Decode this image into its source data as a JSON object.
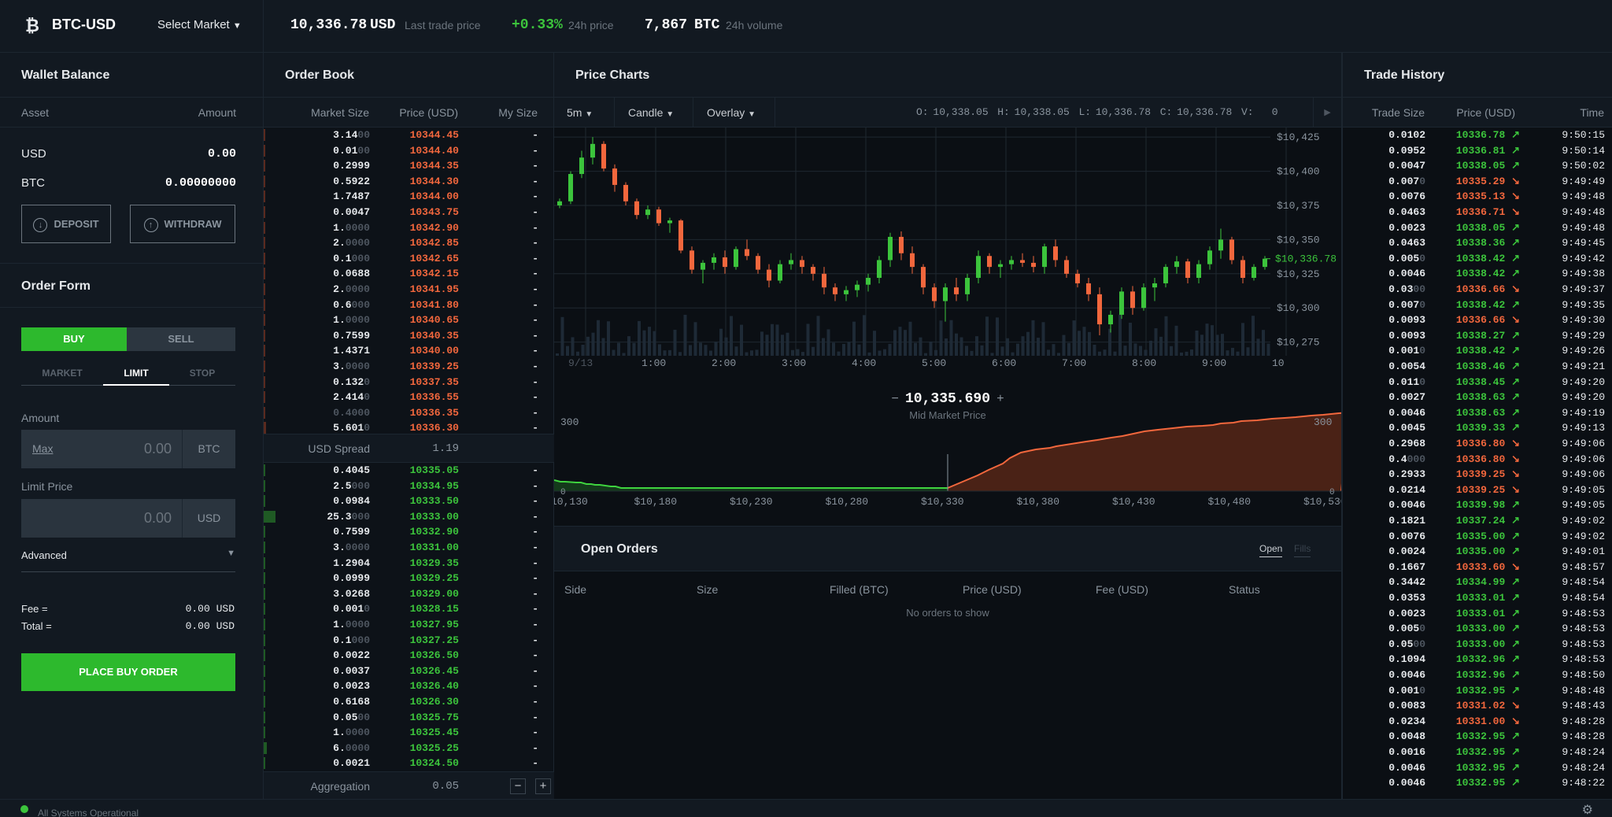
{
  "header": {
    "symbol": "BTC-USD",
    "market_select": "Select Market",
    "last_price": "10,336.78",
    "last_price_unit": "USD",
    "last_price_label": "Last trade price",
    "change": "+0.33%",
    "change_label": "24h price",
    "volume": "7,867",
    "volume_unit": "BTC",
    "volume_label": "24h volume"
  },
  "wallet": {
    "title": "Wallet Balance",
    "col_asset": "Asset",
    "col_amount": "Amount",
    "rows": [
      {
        "asset": "USD",
        "amount": "0.00"
      },
      {
        "asset": "BTC",
        "amount": "0.00000000"
      }
    ],
    "deposit": "DEPOSIT",
    "withdraw": "WITHDRAW"
  },
  "order_form": {
    "title": "Order Form",
    "buy": "BUY",
    "sell": "SELL",
    "tabs": [
      "MARKET",
      "LIMIT",
      "STOP"
    ],
    "active_tab": "LIMIT",
    "amount_label": "Amount",
    "max": "Max",
    "amount_value": "0.00",
    "amount_unit": "BTC",
    "limit_label": "Limit Price",
    "limit_value": "0.00",
    "limit_unit": "USD",
    "advanced": "Advanced",
    "fee_label": "Fee =",
    "fee_value": "0.00",
    "fee_unit": "USD",
    "total_label": "Total =",
    "total_value": "0.00",
    "total_unit": "USD",
    "place": "PLACE BUY ORDER"
  },
  "order_book": {
    "title": "Order Book",
    "col_size": "Market Size",
    "col_price": "Price (USD)",
    "col_my": "My Size",
    "asks": [
      [
        "3.14",
        "00",
        "10344.45"
      ],
      [
        "0.01",
        "00",
        "10344.40"
      ],
      [
        "0.2999",
        "",
        "10344.35"
      ],
      [
        "0.5922",
        "",
        "10344.30"
      ],
      [
        "1.7487",
        "",
        "10344.00"
      ],
      [
        "0.0047",
        "",
        "10343.75"
      ],
      [
        "1.",
        "0000",
        "10342.90"
      ],
      [
        "2.",
        "0000",
        "10342.85"
      ],
      [
        "0.1",
        "000",
        "10342.65"
      ],
      [
        "0.0688",
        "",
        "10342.15"
      ],
      [
        "2.",
        "0000",
        "10341.95"
      ],
      [
        "0.6",
        "000",
        "10341.80"
      ],
      [
        "1.",
        "0000",
        "10340.65"
      ],
      [
        "0.7599",
        "",
        "10340.35"
      ],
      [
        "1.4371",
        "",
        "10340.00"
      ],
      [
        "3.",
        "0000",
        "10339.25"
      ],
      [
        "0.132",
        "0",
        "10337.35"
      ],
      [
        "2.414",
        "0",
        "10336.55"
      ],
      [
        "",
        "0.4000",
        "10336.35"
      ],
      [
        "5.601",
        "0",
        "10336.30"
      ]
    ],
    "spread_label": "USD Spread",
    "spread_value": "1.19",
    "bids": [
      [
        "0.4045",
        "",
        "10335.05"
      ],
      [
        "2.5",
        "000",
        "10334.95"
      ],
      [
        "0.0984",
        "",
        "10333.50"
      ],
      [
        "25.3",
        "000",
        "10333.00"
      ],
      [
        "0.7599",
        "",
        "10332.90"
      ],
      [
        "3.",
        "0000",
        "10331.00"
      ],
      [
        "1.2904",
        "",
        "10329.35"
      ],
      [
        "0.0999",
        "",
        "10329.25"
      ],
      [
        "3.0268",
        "",
        "10329.00"
      ],
      [
        "0.001",
        "0",
        "10328.15"
      ],
      [
        "1.",
        "0000",
        "10327.95"
      ],
      [
        "0.1",
        "000",
        "10327.25"
      ],
      [
        "0.0022",
        "",
        "10326.50"
      ],
      [
        "0.0037",
        "",
        "10326.45"
      ],
      [
        "0.0023",
        "",
        "10326.40"
      ],
      [
        "0.6168",
        "",
        "10326.30"
      ],
      [
        "0.05",
        "00",
        "10325.75"
      ],
      [
        "1.",
        "0000",
        "10325.45"
      ],
      [
        "6.",
        "0000",
        "10325.25"
      ],
      [
        "0.0021",
        "",
        "10324.50"
      ]
    ],
    "my_size": "-",
    "aggregation_label": "Aggregation",
    "aggregation_value": "0.05"
  },
  "price_charts": {
    "title": "Price Charts",
    "interval": "5m",
    "chart_type": "Candle",
    "overlay": "Overlay",
    "ohlc": {
      "o": "O: 10,338.05",
      "h": "H: 10,338.05",
      "l": "L: 10,336.78",
      "c": "C: 10,336.78",
      "v": "V:",
      "v_val": "0"
    },
    "y_ticks": [
      "$10,425",
      "$10,400",
      "$10,375",
      "$10,350",
      "$10,325",
      "$10,300",
      "$10,275"
    ],
    "current_price_tag": "$10,336.78",
    "x_ticks": [
      "9/13",
      "1:00",
      "2:00",
      "3:00",
      "4:00",
      "5:00",
      "6:00",
      "7:00",
      "8:00",
      "9:00",
      "10"
    ],
    "mid_price": "10,335.690",
    "mid_label": "Mid Market Price",
    "depth_x_ticks": [
      "10,130",
      "$10,180",
      "$10,230",
      "$10,280",
      "$10,330",
      "$10,380",
      "$10,430",
      "$10,480",
      "$10,530"
    ],
    "depth_y_tick": "300",
    "depth_y_zero": "0"
  },
  "open_orders": {
    "title": "Open Orders",
    "tab_open": "Open",
    "tab_fills": "Fills",
    "cols": [
      "Side",
      "Size",
      "Filled (BTC)",
      "Price (USD)",
      "Fee (USD)",
      "Status"
    ],
    "empty": "No orders to show"
  },
  "trade_history": {
    "title": "Trade History",
    "col_size": "Trade Size",
    "col_price": "Price (USD)",
    "col_time": "Time",
    "rows": [
      [
        "0.0102",
        "",
        "10336.78",
        "up",
        "9:50:15"
      ],
      [
        "0.0952",
        "",
        "10336.81",
        "up",
        "9:50:14"
      ],
      [
        "0.0047",
        "",
        "10338.05",
        "up",
        "9:50:02"
      ],
      [
        "0.007",
        "0",
        "10335.29",
        "dn",
        "9:49:49"
      ],
      [
        "0.0076",
        "",
        "10335.13",
        "dn",
        "9:49:48"
      ],
      [
        "0.0463",
        "",
        "10336.71",
        "dn",
        "9:49:48"
      ],
      [
        "0.0023",
        "",
        "10338.05",
        "up",
        "9:49:48"
      ],
      [
        "0.0463",
        "",
        "10338.36",
        "up",
        "9:49:45"
      ],
      [
        "0.005",
        "0",
        "10338.42",
        "up",
        "9:49:42"
      ],
      [
        "0.0046",
        "",
        "10338.42",
        "up",
        "9:49:38"
      ],
      [
        "0.03",
        "00",
        "10336.66",
        "dn",
        "9:49:37"
      ],
      [
        "0.007",
        "0",
        "10338.42",
        "up",
        "9:49:35"
      ],
      [
        "0.0093",
        "",
        "10336.66",
        "dn",
        "9:49:30"
      ],
      [
        "0.0093",
        "",
        "10338.27",
        "up",
        "9:49:29"
      ],
      [
        "0.001",
        "0",
        "10338.42",
        "up",
        "9:49:26"
      ],
      [
        "0.0054",
        "",
        "10338.46",
        "up",
        "9:49:21"
      ],
      [
        "0.011",
        "0",
        "10338.45",
        "up",
        "9:49:20"
      ],
      [
        "0.0027",
        "",
        "10338.63",
        "up",
        "9:49:20"
      ],
      [
        "0.0046",
        "",
        "10338.63",
        "up",
        "9:49:19"
      ],
      [
        "0.0045",
        "",
        "10339.33",
        "up",
        "9:49:13"
      ],
      [
        "0.2968",
        "",
        "10336.80",
        "dn",
        "9:49:06"
      ],
      [
        "0.4",
        "000",
        "10336.80",
        "dn",
        "9:49:06"
      ],
      [
        "0.2933",
        "",
        "10339.25",
        "dn",
        "9:49:06"
      ],
      [
        "0.0214",
        "",
        "10339.25",
        "dn",
        "9:49:05"
      ],
      [
        "0.0046",
        "",
        "10339.98",
        "up",
        "9:49:05"
      ],
      [
        "0.1821",
        "",
        "10337.24",
        "up",
        "9:49:02"
      ],
      [
        "0.0076",
        "",
        "10335.00",
        "up",
        "9:49:02"
      ],
      [
        "0.0024",
        "",
        "10335.00",
        "up",
        "9:49:01"
      ],
      [
        "0.1667",
        "",
        "10333.60",
        "dn",
        "9:48:57"
      ],
      [
        "0.3442",
        "",
        "10334.99",
        "up",
        "9:48:54"
      ],
      [
        "0.0353",
        "",
        "10333.01",
        "up",
        "9:48:54"
      ],
      [
        "0.0023",
        "",
        "10333.01",
        "up",
        "9:48:53"
      ],
      [
        "0.005",
        "0",
        "10333.00",
        "up",
        "9:48:53"
      ],
      [
        "0.05",
        "00",
        "10333.00",
        "up",
        "9:48:53"
      ],
      [
        "0.1094",
        "",
        "10332.96",
        "up",
        "9:48:53"
      ],
      [
        "0.0046",
        "",
        "10332.96",
        "up",
        "9:48:50"
      ],
      [
        "0.001",
        "0",
        "10332.95",
        "up",
        "9:48:48"
      ],
      [
        "0.0083",
        "",
        "10331.02",
        "dn",
        "9:48:43"
      ],
      [
        "0.0234",
        "",
        "10331.00",
        "dn",
        "9:48:28"
      ],
      [
        "0.0048",
        "",
        "10332.95",
        "up",
        "9:48:28"
      ],
      [
        "0.0016",
        "",
        "10332.95",
        "up",
        "9:48:24"
      ],
      [
        "0.0046",
        "",
        "10332.95",
        "up",
        "9:48:24"
      ],
      [
        "0.0046",
        "",
        "10332.95",
        "up",
        "9:48:22"
      ]
    ]
  },
  "status_bar": {
    "text": "All Systems Operational"
  },
  "colors": {
    "up": "#3cc43c",
    "down": "#f2673d",
    "bg": "#0b0f14",
    "panel": "#121921",
    "buy_btn": "#2db92d"
  },
  "chart_data": {
    "type": "candlestick",
    "x_labels": [
      "9/13",
      "1:00",
      "2:00",
      "3:00",
      "4:00",
      "5:00",
      "6:00",
      "7:00",
      "8:00",
      "9:00",
      "10"
    ],
    "ylim": [
      10265,
      10432
    ],
    "candles": [
      [
        10375,
        10380,
        10373,
        10378
      ],
      [
        10378,
        10400,
        10376,
        10398
      ],
      [
        10398,
        10415,
        10395,
        10410
      ],
      [
        10410,
        10425,
        10405,
        10420
      ],
      [
        10420,
        10422,
        10400,
        10402
      ],
      [
        10402,
        10405,
        10385,
        10390
      ],
      [
        10390,
        10392,
        10375,
        10378
      ],
      [
        10378,
        10380,
        10365,
        10368
      ],
      [
        10368,
        10375,
        10365,
        10372
      ],
      [
        10372,
        10374,
        10360,
        10362
      ],
      [
        10362,
        10366,
        10355,
        10364
      ],
      [
        10364,
        10365,
        10340,
        10342
      ],
      [
        10342,
        10345,
        10325,
        10328
      ],
      [
        10328,
        10335,
        10318,
        10333
      ],
      [
        10333,
        10340,
        10328,
        10337
      ],
      [
        10337,
        10342,
        10325,
        10330
      ],
      [
        10330,
        10345,
        10328,
        10343
      ],
      [
        10343,
        10350,
        10335,
        10338
      ],
      [
        10338,
        10340,
        10325,
        10328
      ],
      [
        10328,
        10332,
        10315,
        10320
      ],
      [
        10320,
        10335,
        10318,
        10332
      ],
      [
        10332,
        10340,
        10328,
        10335
      ],
      [
        10335,
        10338,
        10325,
        10330
      ],
      [
        10330,
        10332,
        10320,
        10325
      ],
      [
        10325,
        10330,
        10310,
        10315
      ],
      [
        10315,
        10318,
        10305,
        10310
      ],
      [
        10310,
        10316,
        10305,
        10313
      ],
      [
        10313,
        10320,
        10308,
        10317
      ],
      [
        10317,
        10325,
        10312,
        10322
      ],
      [
        10322,
        10338,
        10318,
        10335
      ],
      [
        10335,
        10355,
        10330,
        10352
      ],
      [
        10352,
        10356,
        10335,
        10340
      ],
      [
        10340,
        10345,
        10325,
        10330
      ],
      [
        10330,
        10332,
        10310,
        10315
      ],
      [
        10315,
        10318,
        10300,
        10305
      ],
      [
        10305,
        10318,
        10290,
        10315
      ],
      [
        10315,
        10322,
        10305,
        10310
      ],
      [
        10310,
        10325,
        10305,
        10322
      ],
      [
        10322,
        10342,
        10318,
        10338
      ],
      [
        10338,
        10340,
        10325,
        10330
      ],
      [
        10330,
        10335,
        10322,
        10332
      ],
      [
        10332,
        10338,
        10328,
        10335
      ],
      [
        10335,
        10340,
        10330,
        10333
      ],
      [
        10333,
        10338,
        10326,
        10330
      ],
      [
        10330,
        10347,
        10325,
        10345
      ],
      [
        10345,
        10350,
        10330,
        10335
      ],
      [
        10335,
        10338,
        10322,
        10325
      ],
      [
        10325,
        10328,
        10315,
        10318
      ],
      [
        10318,
        10322,
        10305,
        10310
      ],
      [
        10310,
        10315,
        10280,
        10288
      ],
      [
        10288,
        10298,
        10282,
        10295
      ],
      [
        10295,
        10315,
        10292,
        10312
      ],
      [
        10312,
        10316,
        10295,
        10300
      ],
      [
        10300,
        10318,
        10298,
        10315
      ],
      [
        10315,
        10322,
        10305,
        10318
      ],
      [
        10318,
        10332,
        10315,
        10330
      ],
      [
        10330,
        10338,
        10325,
        10334
      ],
      [
        10334,
        10336,
        10318,
        10322
      ],
      [
        10322,
        10335,
        10318,
        10332
      ],
      [
        10332,
        10345,
        10328,
        10342
      ],
      [
        10342,
        10358,
        10336,
        10350
      ],
      [
        10350,
        10352,
        10332,
        10335
      ],
      [
        10335,
        10338,
        10318,
        10322
      ],
      [
        10322,
        10332,
        10320,
        10330
      ],
      [
        10330,
        10338,
        10328,
        10336
      ]
    ]
  }
}
